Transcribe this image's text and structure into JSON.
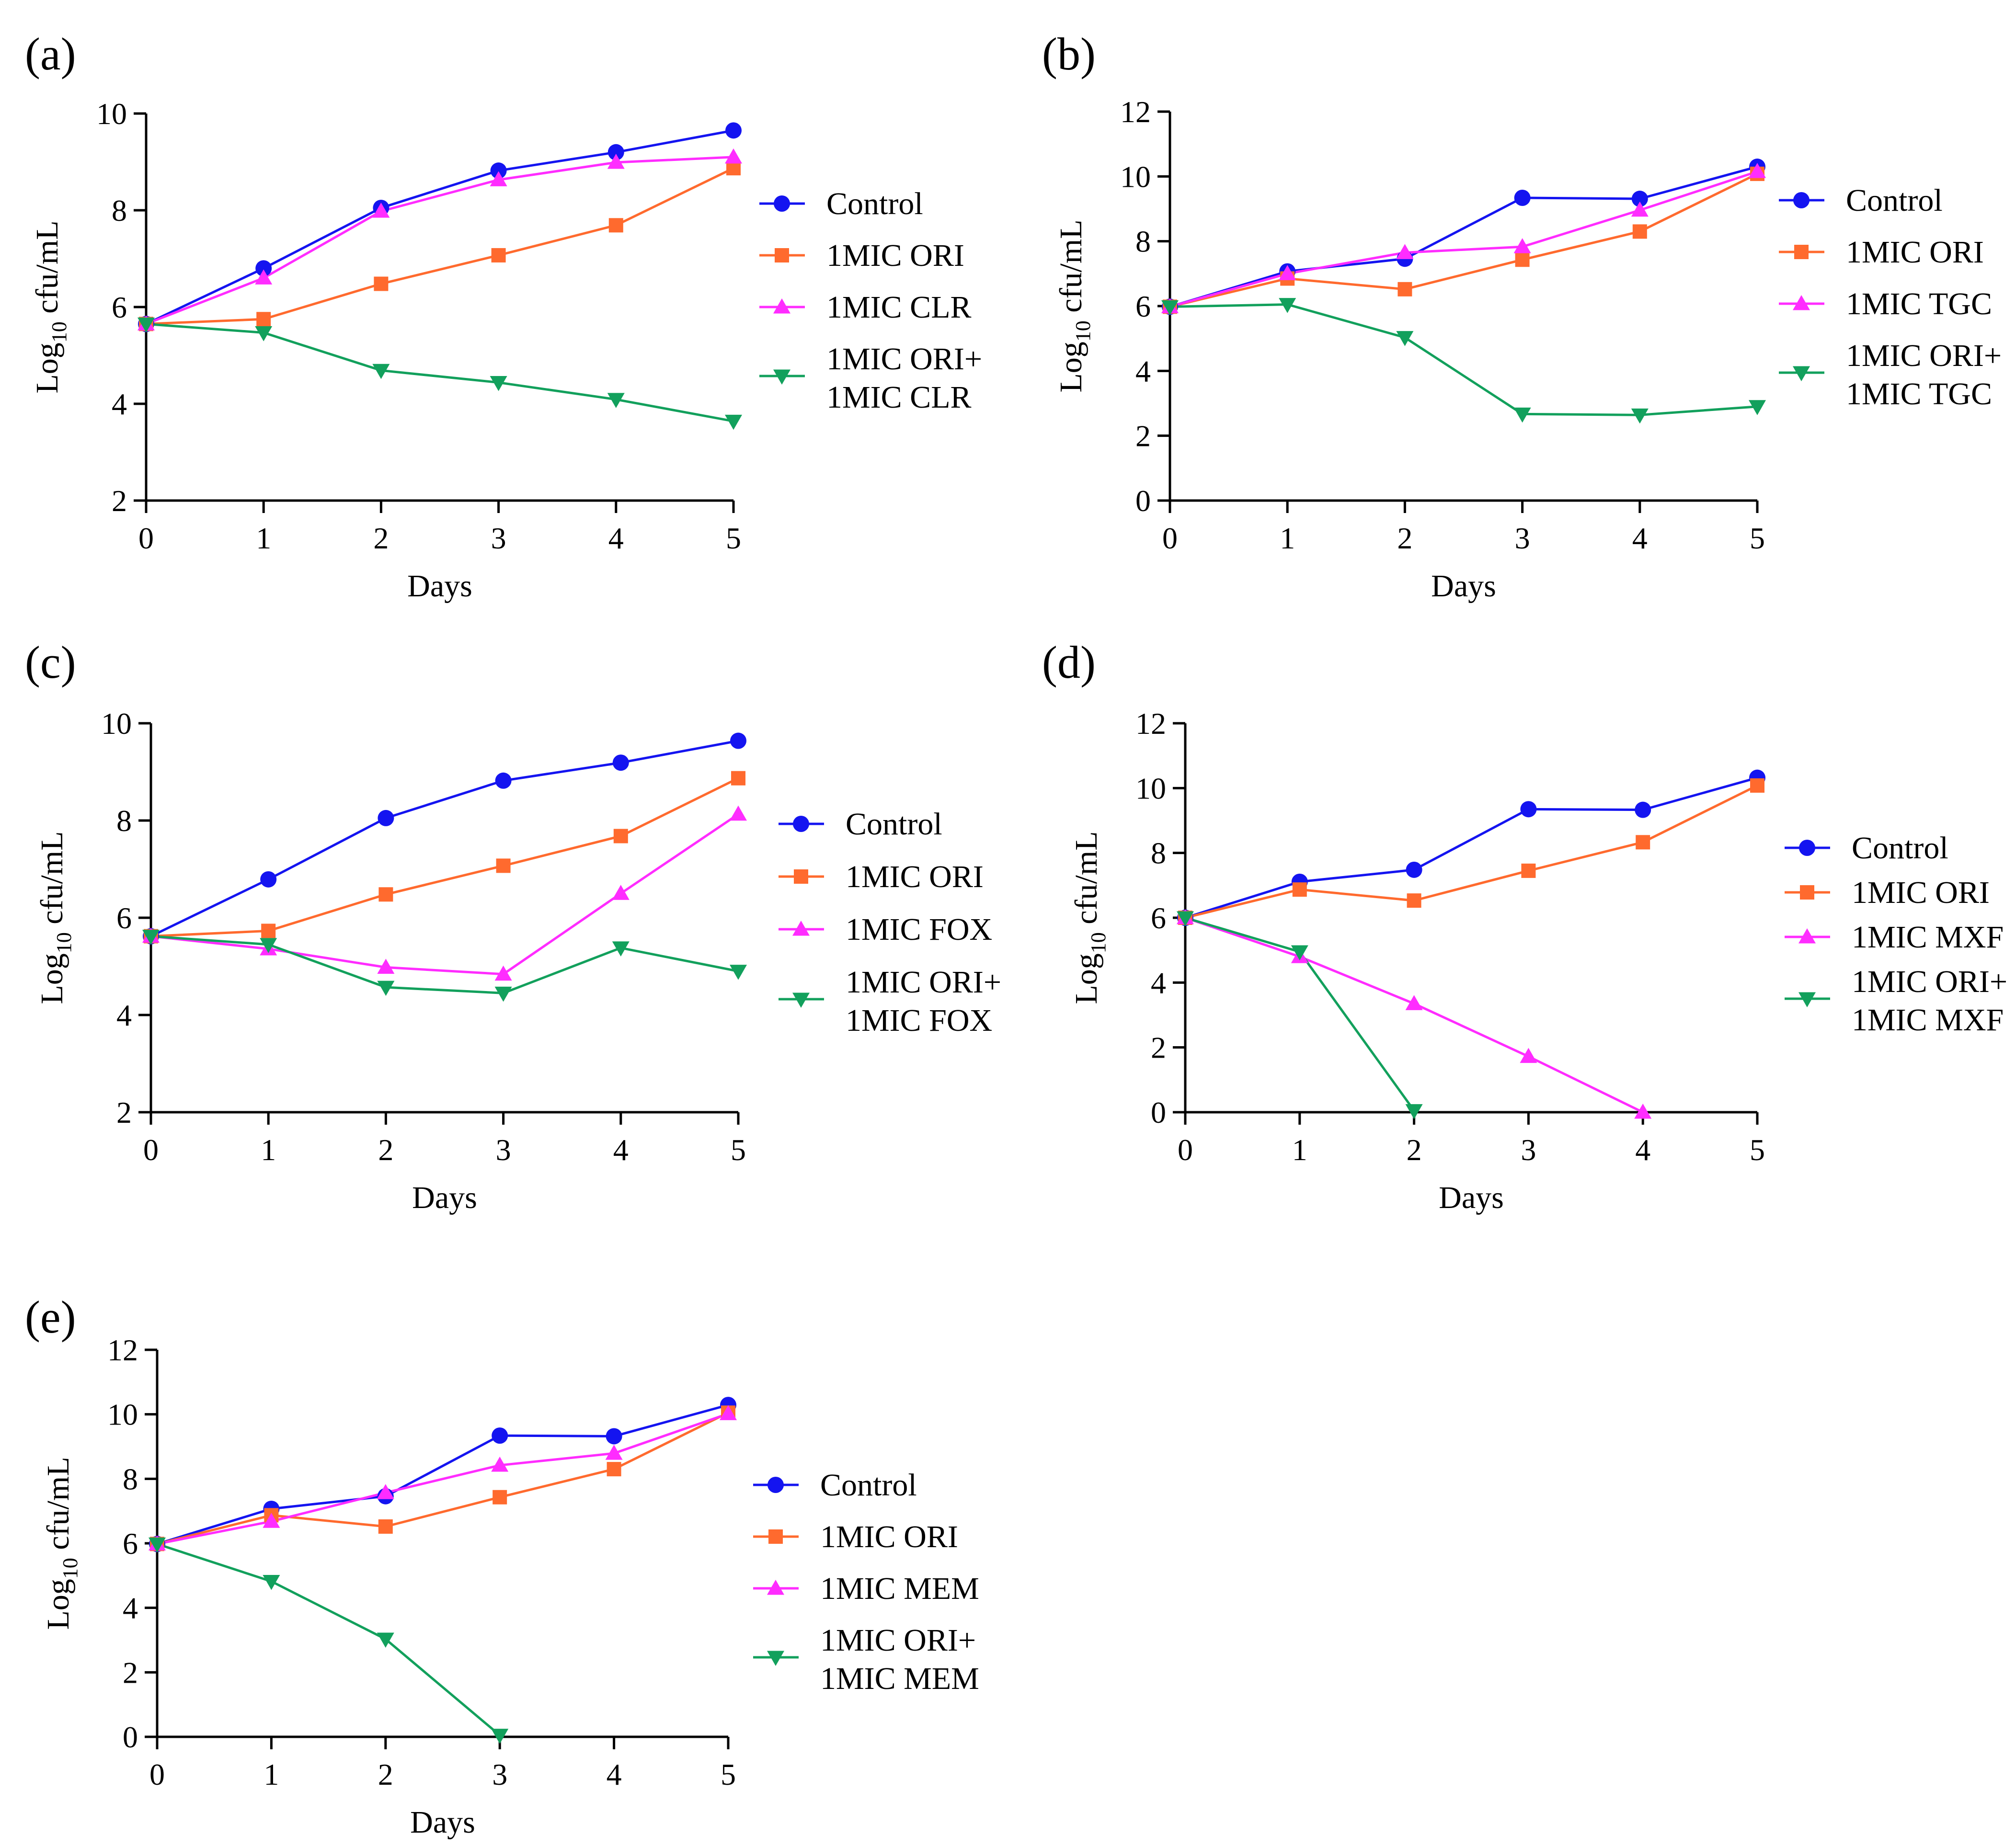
{
  "figure": {
    "colors": {
      "Control": "#1414f0",
      "1MIC ORI": "#ff6a2e",
      "third": "#ff2cff",
      "combo": "#12a05c",
      "axis": "#000000"
    },
    "markers": {
      "Control": "circle",
      "1MIC ORI": "square",
      "third": "triangle-up",
      "combo": "triangle-down"
    }
  },
  "chart_data": [
    {
      "panel": "(a)",
      "type": "line",
      "xlabel": "Days",
      "ylabel": "Log10 cfu/mL",
      "ylabel_main": "Log",
      "ylabel_sub": "10",
      "ylabel_rest": " cfu/mL",
      "x": [
        0,
        1,
        2,
        3,
        4,
        5
      ],
      "xlim": [
        0,
        5
      ],
      "ylim": [
        2,
        10
      ],
      "yticks": [
        2,
        4,
        6,
        8,
        10
      ],
      "series": [
        {
          "name": "Control",
          "legend_lines": [
            "Control"
          ],
          "values": [
            5.65,
            6.8,
            8.05,
            8.82,
            9.2,
            9.65
          ]
        },
        {
          "name": "1MIC ORI",
          "legend_lines": [
            "1MIC ORI"
          ],
          "values": [
            5.65,
            5.75,
            6.48,
            7.07,
            7.69,
            8.87
          ]
        },
        {
          "name": "1MIC CLR",
          "legend_lines": [
            "1MIC CLR"
          ],
          "values": [
            5.65,
            6.6,
            7.98,
            8.63,
            8.99,
            9.1
          ]
        },
        {
          "name": "1MIC ORI+ 1MIC CLR",
          "legend_lines": [
            "1MIC ORI+",
            "1MIC CLR"
          ],
          "values": [
            5.65,
            5.47,
            4.69,
            4.44,
            4.09,
            3.64
          ]
        }
      ]
    },
    {
      "panel": "(b)",
      "type": "line",
      "xlabel": "Days",
      "ylabel": "Log10 cfu/mL",
      "ylabel_main": "Log",
      "ylabel_sub": "10",
      "ylabel_rest": " cfu/mL",
      "x": [
        0,
        1,
        2,
        3,
        4,
        5
      ],
      "xlim": [
        0,
        5
      ],
      "ylim": [
        0,
        12
      ],
      "yticks": [
        0,
        2,
        4,
        6,
        8,
        10,
        12
      ],
      "series": [
        {
          "name": "Control",
          "legend_lines": [
            "Control"
          ],
          "values": [
            5.98,
            7.07,
            7.46,
            9.34,
            9.31,
            10.3
          ]
        },
        {
          "name": "1MIC ORI",
          "legend_lines": [
            "1MIC ORI"
          ],
          "values": [
            5.98,
            6.85,
            6.52,
            7.43,
            8.3,
            10.08
          ]
        },
        {
          "name": "1MIC TGC",
          "legend_lines": [
            "1MIC TGC"
          ],
          "values": [
            5.98,
            7.0,
            7.65,
            7.83,
            8.96,
            10.15
          ]
        },
        {
          "name": "1MIC ORI+ 1MIC TGC",
          "legend_lines": [
            "1MIC ORI+",
            "1MIC TGC"
          ],
          "values": [
            5.98,
            6.05,
            5.03,
            2.67,
            2.64,
            2.9
          ]
        }
      ]
    },
    {
      "panel": "(c)",
      "type": "line",
      "xlabel": "Days",
      "ylabel": "Log10 cfu/mL",
      "ylabel_main": "Log",
      "ylabel_sub": "10",
      "ylabel_rest": " cfu/mL",
      "x": [
        0,
        1,
        2,
        3,
        4,
        5
      ],
      "xlim": [
        0,
        5
      ],
      "ylim": [
        2,
        10
      ],
      "yticks": [
        2,
        4,
        6,
        8,
        10
      ],
      "series": [
        {
          "name": "Control",
          "legend_lines": [
            "Control"
          ],
          "values": [
            5.62,
            6.79,
            8.05,
            8.82,
            9.19,
            9.64
          ]
        },
        {
          "name": "1MIC ORI",
          "legend_lines": [
            "1MIC ORI"
          ],
          "values": [
            5.62,
            5.73,
            6.48,
            7.07,
            7.68,
            8.87
          ]
        },
        {
          "name": "1MIC FOX",
          "legend_lines": [
            "1MIC FOX"
          ],
          "values": [
            5.62,
            5.36,
            4.98,
            4.84,
            6.5,
            8.13
          ]
        },
        {
          "name": "1MIC ORI+ 1MIC FOX",
          "legend_lines": [
            "1MIC ORI+",
            "1MIC FOX"
          ],
          "values": [
            5.62,
            5.45,
            4.57,
            4.45,
            5.38,
            4.9
          ]
        }
      ]
    },
    {
      "panel": "(d)",
      "type": "line",
      "xlabel": "Days",
      "ylabel": "Log10 cfu/mL",
      "ylabel_main": "Log",
      "ylabel_sub": "10",
      "ylabel_rest": " cfu/mL",
      "x": [
        0,
        1,
        2,
        3,
        4,
        5
      ],
      "xlim": [
        0,
        5
      ],
      "ylim": [
        0,
        12
      ],
      "yticks": [
        0,
        2,
        4,
        6,
        8,
        10,
        12
      ],
      "series": [
        {
          "name": "Control",
          "legend_lines": [
            "Control"
          ],
          "x": [
            0,
            1,
            2,
            3,
            4,
            5
          ],
          "values": [
            6.0,
            7.11,
            7.48,
            9.35,
            9.33,
            10.32
          ]
        },
        {
          "name": "1MIC ORI",
          "legend_lines": [
            "1MIC ORI"
          ],
          "x": [
            0,
            1,
            2,
            3,
            4,
            5
          ],
          "values": [
            6.0,
            6.87,
            6.53,
            7.45,
            8.33,
            10.08
          ]
        },
        {
          "name": "1MIC MXF",
          "legend_lines": [
            "1MIC MXF"
          ],
          "x": [
            0,
            1,
            2,
            3,
            4
          ],
          "values": [
            6.0,
            4.8,
            3.35,
            1.72,
            0.0
          ]
        },
        {
          "name": "1MIC ORI+ 1MIC MXF",
          "legend_lines": [
            "1MIC ORI+",
            "1MIC MXF"
          ],
          "x": [
            0,
            1,
            2
          ],
          "values": [
            6.0,
            4.95,
            0.05
          ]
        }
      ]
    },
    {
      "panel": "(e)",
      "type": "line",
      "xlabel": "Days",
      "ylabel": "Log10 cfu/mL",
      "ylabel_main": "Log",
      "ylabel_sub": "10",
      "ylabel_rest": " cfu/mL",
      "x": [
        0,
        1,
        2,
        3,
        4,
        5
      ],
      "xlim": [
        0,
        5
      ],
      "ylim": [
        0,
        12
      ],
      "yticks": [
        0,
        2,
        4,
        6,
        8,
        10,
        12
      ],
      "series": [
        {
          "name": "Control",
          "legend_lines": [
            "Control"
          ],
          "x": [
            0,
            1,
            2,
            3,
            4,
            5
          ],
          "values": [
            5.98,
            7.07,
            7.46,
            9.34,
            9.32,
            10.29
          ]
        },
        {
          "name": "1MIC ORI",
          "legend_lines": [
            "1MIC ORI"
          ],
          "x": [
            0,
            1,
            2,
            3,
            4,
            5
          ],
          "values": [
            5.98,
            6.87,
            6.52,
            7.43,
            8.3,
            10.05
          ]
        },
        {
          "name": "1MIC MEM",
          "legend_lines": [
            "1MIC MEM"
          ],
          "x": [
            0,
            1,
            2,
            3,
            4,
            5
          ],
          "values": [
            5.98,
            6.68,
            7.57,
            8.42,
            8.79,
            10.02
          ]
        },
        {
          "name": "1MIC ORI+ 1MIC MEM",
          "legend_lines": [
            "1MIC ORI+",
            "1MIC MEM"
          ],
          "x": [
            0,
            1,
            2,
            3
          ],
          "values": [
            5.98,
            4.82,
            3.03,
            0.05
          ]
        }
      ]
    }
  ]
}
